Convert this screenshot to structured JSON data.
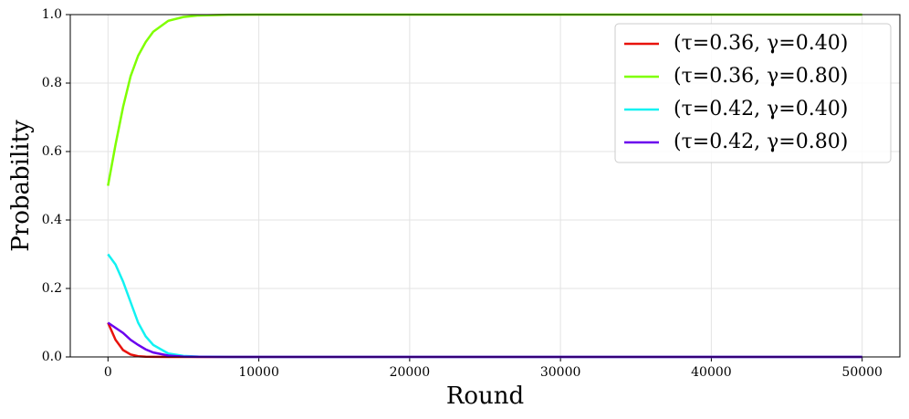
{
  "chart_data": {
    "type": "line",
    "xlabel": "Round",
    "ylabel": "Probability",
    "x": [
      0,
      500,
      1000,
      1500,
      2000,
      2500,
      3000,
      4000,
      5000,
      6000,
      8000,
      10000,
      20000,
      30000,
      40000,
      50000
    ],
    "series": [
      {
        "name": "(τ=0.36, γ=0.40)",
        "color": "#e8120c",
        "values": [
          0.1,
          0.05,
          0.02,
          0.007,
          0.002,
          0.0007,
          0.0002,
          0,
          0,
          0,
          0,
          0,
          0,
          0,
          0,
          0
        ]
      },
      {
        "name": "(τ=0.36, γ=0.80)",
        "color": "#7fff00",
        "values": [
          0.5,
          0.62,
          0.73,
          0.82,
          0.88,
          0.92,
          0.95,
          0.982,
          0.993,
          0.9975,
          0.9997,
          1,
          1,
          1,
          1,
          1
        ]
      },
      {
        "name": "(τ=0.42, γ=0.40)",
        "color": "#12f2f2",
        "values": [
          0.3,
          0.27,
          0.22,
          0.16,
          0.1,
          0.06,
          0.035,
          0.01,
          0.003,
          0.001,
          0,
          0,
          0,
          0,
          0,
          0
        ]
      },
      {
        "name": "(τ=0.42, γ=0.80)",
        "color": "#6a00ee",
        "values": [
          0.1,
          0.085,
          0.07,
          0.05,
          0.035,
          0.022,
          0.013,
          0.004,
          0.001,
          0.0003,
          0,
          0,
          0,
          0,
          0,
          0
        ]
      }
    ],
    "xlim": [
      -2500,
      52500
    ],
    "xticks": [
      0,
      10000,
      20000,
      30000,
      40000,
      50000
    ],
    "ylim": [
      0,
      1
    ],
    "yticks": [
      {
        "value": 0,
        "label": "0.0"
      },
      0.2,
      0.4,
      0.6,
      0.8,
      {
        "value": 1,
        "label": "1.0"
      }
    ],
    "grid": true,
    "legend": "upper right"
  }
}
